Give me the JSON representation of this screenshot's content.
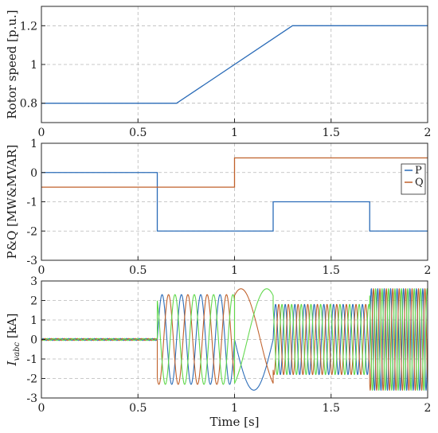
{
  "chart_data": [
    {
      "type": "line",
      "title": "",
      "xlabel": "",
      "ylabel": "Rotor speed [p.u.]",
      "xlim": [
        0,
        2
      ],
      "ylim": [
        0.7,
        1.3
      ],
      "xticks": [
        "0",
        "0.5",
        "1",
        "1.5",
        "2"
      ],
      "yticks": [
        "0.8",
        "1",
        "1.2"
      ],
      "ytick_values": [
        0.8,
        1.0,
        1.2
      ],
      "grid": true,
      "series": [
        {
          "color": "#2b6cb8",
          "x": [
            0,
            0.7,
            1.3,
            2
          ],
          "y": [
            0.8,
            0.8,
            1.2,
            1.2
          ]
        }
      ]
    },
    {
      "type": "line",
      "title": "",
      "xlabel": "",
      "ylabel": "P&Q [MW&MVAR]",
      "xlim": [
        0,
        2
      ],
      "ylim": [
        -3,
        1
      ],
      "xticks": [
        "0",
        "0.5",
        "1",
        "1.5",
        "2"
      ],
      "yticks": [
        "-3",
        "-2",
        "-1",
        "0",
        "1"
      ],
      "ytick_values": [
        -3,
        -2,
        -1,
        0,
        1
      ],
      "grid": true,
      "legend": "right",
      "series": [
        {
          "name": "P",
          "color": "#2b6cb8",
          "x": [
            0,
            0.6,
            0.6,
            1.2,
            1.2,
            1.7,
            1.7,
            2
          ],
          "y": [
            0,
            0,
            -2,
            -2,
            -1,
            -1,
            -2,
            -2
          ]
        },
        {
          "name": "Q",
          "color": "#c0612b",
          "x": [
            0,
            1.0,
            1.0,
            2
          ],
          "y": [
            -0.5,
            -0.5,
            0.5,
            0.5
          ]
        }
      ]
    },
    {
      "type": "line",
      "title": "",
      "xlabel": "Time [s]",
      "ylabel_main": "I",
      "ylabel_sub": "vabc",
      "ylabel_unit": " [kA]",
      "xlim": [
        0,
        2
      ],
      "ylim": [
        -3,
        3
      ],
      "xticks": [
        "0",
        "0.5",
        "1",
        "1.5",
        "2"
      ],
      "yticks": [
        "-3",
        "-2",
        "-1",
        "0",
        "1",
        "2",
        "3"
      ],
      "ytick_values": [
        -3,
        -2,
        -1,
        0,
        1,
        2,
        3
      ],
      "grid": true,
      "phase_colors": [
        "#2b6cb8",
        "#c0612b",
        "#5fd84a"
      ],
      "segments": [
        {
          "t0": 0.0,
          "t1": 0.6,
          "amplitude": 0.05,
          "frequency_hz": 30
        },
        {
          "t0": 0.6,
          "t1": 1.0,
          "amplitude": 2.3,
          "frequency_hz": 10
        },
        {
          "t0": 1.0,
          "t1": 1.2,
          "amplitude": 2.6,
          "frequency_hz": 2.5
        },
        {
          "t0": 1.2,
          "t1": 1.7,
          "amplitude": 1.8,
          "frequency_hz": 20
        },
        {
          "t0": 1.7,
          "t1": 2.0,
          "amplitude": 2.6,
          "frequency_hz": 30
        }
      ]
    }
  ]
}
